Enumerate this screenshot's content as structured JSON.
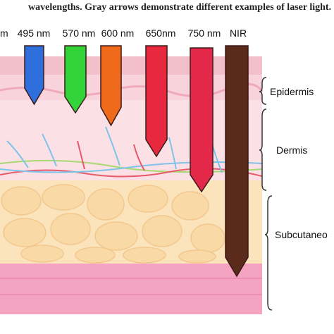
{
  "caption": "wavelengths. Gray arrows demonstrate different examples of laser light. Cre",
  "wavelengths": [
    "m",
    "495 nm",
    "570 nm",
    "600 nm",
    "650nm",
    "750 nm",
    "NIR"
  ],
  "layers": [
    "Epidermis",
    "Dermis",
    "Subcutaneo"
  ]
}
